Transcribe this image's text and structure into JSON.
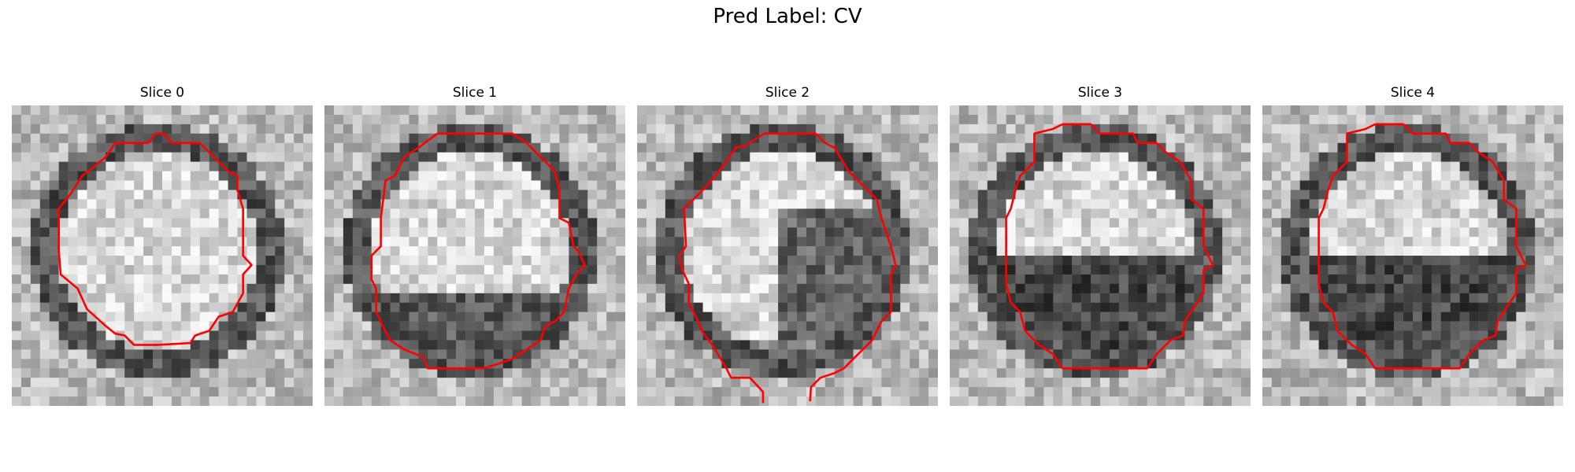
{
  "figure": {
    "title": "Pred Label: CV",
    "contour_color": "#ff0000",
    "colormap": "gray",
    "slices": [
      {
        "title": "Slice 0",
        "pattern": "bright-ring-uniform"
      },
      {
        "title": "Slice 1",
        "pattern": "bright-top-dark-bottom-edge"
      },
      {
        "title": "Slice 2",
        "pattern": "bright-left-dark-right-open-bottom"
      },
      {
        "title": "Slice 3",
        "pattern": "bright-top-dark-bottom"
      },
      {
        "title": "Slice 4",
        "pattern": "bright-top-dark-bottom"
      }
    ]
  }
}
